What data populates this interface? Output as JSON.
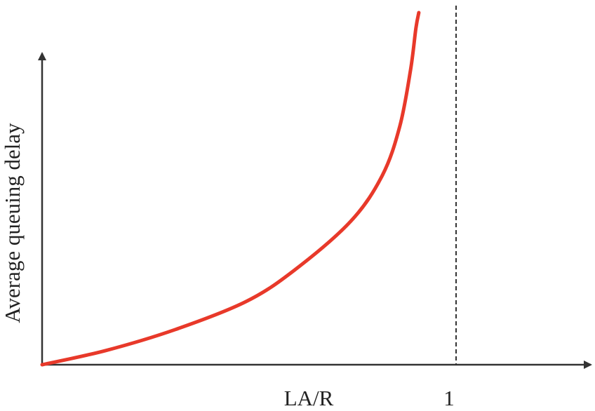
{
  "chart_data": {
    "type": "line",
    "x_label": "LA/R",
    "y_label": "Average queuing delay",
    "x": [
      0,
      0.153,
      0.322,
      0.492,
      0.61,
      0.746,
      0.822,
      0.864,
      0.89,
      0.903,
      0.91
    ],
    "values": [
      0,
      0.04,
      0.1,
      0.179,
      0.269,
      0.408,
      0.538,
      0.677,
      0.837,
      0.956,
      1.0
    ],
    "color": "#e8392a",
    "xlim": [
      0,
      1.33
    ],
    "xticks": [
      1
    ],
    "ylim": [
      0,
      1
    ]
  }
}
